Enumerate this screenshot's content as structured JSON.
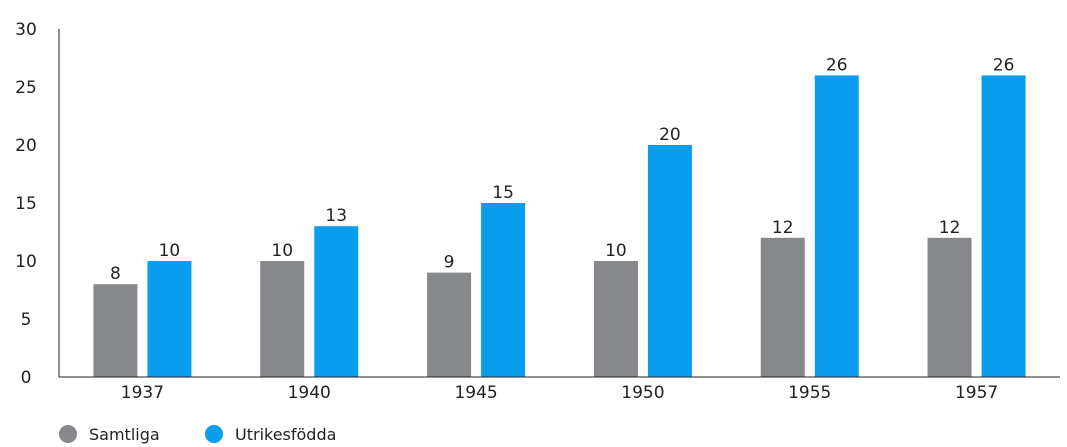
{
  "chart_data": {
    "type": "bar",
    "title": "",
    "xlabel": "",
    "ylabel": "",
    "categories": [
      "1937",
      "1940",
      "1945",
      "1950",
      "1955",
      "1957"
    ],
    "ylim": [
      0,
      30
    ],
    "yticks": [
      "0",
      "5",
      "10",
      "15",
      "20",
      "25",
      "30"
    ],
    "grid": false,
    "legend_position": "bottom-left",
    "series": [
      {
        "name": "Samtliga",
        "color": "#86888c",
        "values": [
          8,
          10,
          9,
          10,
          12,
          12
        ],
        "labels": [
          "8",
          "10",
          "9",
          "10",
          "12",
          "12"
        ]
      },
      {
        "name": "Utrikesfödda",
        "color": "#0a9ded",
        "values": [
          10,
          13,
          15,
          20,
          26,
          26
        ],
        "labels": [
          "10",
          "13",
          "15",
          "20",
          "26",
          "26"
        ]
      }
    ]
  }
}
